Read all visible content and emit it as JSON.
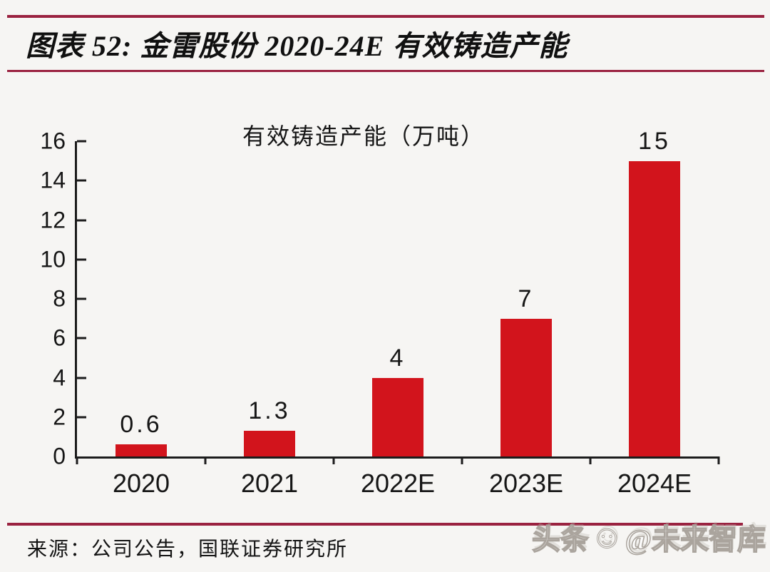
{
  "header": {
    "title": "图表 52: 金雷股份 2020-24E 有效铸造产能"
  },
  "chart_data": {
    "type": "bar",
    "title": "有效铸造产能（万吨）",
    "categories": [
      "2020",
      "2021",
      "2022E",
      "2023E",
      "2024E"
    ],
    "values": [
      0.6,
      1.3,
      4,
      7,
      15
    ],
    "value_labels": [
      "0.6",
      "1.3",
      "4",
      "7",
      "15"
    ],
    "xlabel": "",
    "ylabel": "",
    "ylim": [
      0,
      16
    ],
    "yticks": [
      0,
      2,
      4,
      6,
      8,
      10,
      12,
      14,
      16
    ],
    "grid": false,
    "legend_position": "none",
    "bar_color": "#d2141c",
    "axis_color": "#1c1c1c"
  },
  "footer": {
    "source": "来源：公司公告，国联证券研究所",
    "watermark_prefix": "头条",
    "watermark_smiley": "☺",
    "watermark_handle": "@未来智库"
  },
  "colors": {
    "accent_rule": "#9a2240",
    "bar_red": "#d2141c",
    "background": "#f6f5f3",
    "text": "#161616"
  }
}
